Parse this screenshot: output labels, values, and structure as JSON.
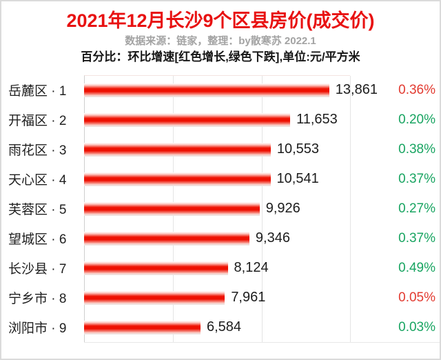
{
  "header": {
    "title": "2021年12月长沙9个区县房价(成交价)",
    "subtitle_source": "数据来源：链家，整理：by散寒苏  2022.1",
    "subtitle_note": "百分比：环比增速[红色增长,绿色下跌],单位:元/平方米"
  },
  "colors": {
    "title_red": "#e81111",
    "increase_red": "#e23a30",
    "decrease_green": "#18a461",
    "subtitle_gray": "#a3a3a3",
    "gridline": "#e4e4e4",
    "bar_red": "#ee0e00"
  },
  "chart_data": {
    "type": "bar",
    "orientation": "horizontal",
    "title": "2021年12月长沙9个区县房价(成交价)",
    "subtitle": "数据来源：链家，整理：by散寒苏 2022.1",
    "note": "百分比：环比增速[红色增长,绿色下跌],单位:元/平方米",
    "unit": "元/平方米",
    "categories": [
      "岳麓区 · 1",
      "开福区 · 2",
      "雨花区 · 3",
      "天心区 · 4",
      "芙蓉区 · 5",
      "望城区 · 6",
      "长沙县 · 7",
      "宁乡市 · 8",
      "浏阳市 · 9"
    ],
    "values": [
      13861,
      11653,
      10553,
      10541,
      9926,
      9346,
      8124,
      7961,
      6584
    ],
    "value_labels": [
      "13,861",
      "11,653",
      "10,553",
      "10,541",
      "9,926",
      "9,346",
      "8,124",
      "7,961",
      "6,584"
    ],
    "pct_change": [
      {
        "label": "0.36%",
        "direction": "up"
      },
      {
        "label": "0.20%",
        "direction": "down"
      },
      {
        "label": "0.38%",
        "direction": "down"
      },
      {
        "label": "0.37%",
        "direction": "down"
      },
      {
        "label": "0.27%",
        "direction": "down"
      },
      {
        "label": "0.37%",
        "direction": "down"
      },
      {
        "label": "0.49%",
        "direction": "down"
      },
      {
        "label": "0.05%",
        "direction": "up"
      },
      {
        "label": "0.03%",
        "direction": "down"
      }
    ],
    "xlim": [
      0,
      15000
    ],
    "gridlines_at": [
      5000,
      10000,
      15000
    ],
    "legend_position": "none",
    "grid": "vertical-only"
  }
}
